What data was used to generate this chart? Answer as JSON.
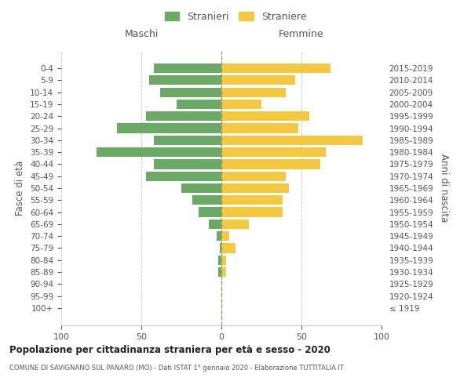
{
  "age_groups": [
    "100+",
    "95-99",
    "90-94",
    "85-89",
    "80-84",
    "75-79",
    "70-74",
    "65-69",
    "60-64",
    "55-59",
    "50-54",
    "45-49",
    "40-44",
    "35-39",
    "30-34",
    "25-29",
    "20-24",
    "15-19",
    "10-14",
    "5-9",
    "0-4"
  ],
  "birth_years": [
    "≤ 1919",
    "1920-1924",
    "1925-1929",
    "1930-1934",
    "1935-1939",
    "1940-1944",
    "1945-1949",
    "1950-1954",
    "1955-1959",
    "1960-1964",
    "1965-1969",
    "1970-1974",
    "1975-1979",
    "1980-1984",
    "1985-1989",
    "1990-1994",
    "1995-1999",
    "2000-2004",
    "2005-2009",
    "2010-2014",
    "2015-2019"
  ],
  "males": [
    0,
    0,
    0,
    2,
    2,
    1,
    3,
    8,
    14,
    18,
    25,
    47,
    42,
    78,
    42,
    65,
    47,
    28,
    38,
    45,
    42
  ],
  "females": [
    0,
    0,
    0,
    3,
    3,
    9,
    5,
    17,
    38,
    38,
    42,
    40,
    62,
    65,
    88,
    48,
    55,
    25,
    40,
    46,
    68
  ],
  "male_color": "#6aaa64",
  "female_color": "#f5c842",
  "bar_height": 0.8,
  "xlim": 100,
  "title_main": "Popolazione per cittadinanza straniera per età e sesso - 2020",
  "title_sub": "COMUNE DI SAVIGNANO SUL PANARO (MO) - Dati ISTAT 1° gennaio 2020 - Elaborazione TUTTITALIA.IT",
  "ylabel_left": "Fasce di età",
  "ylabel_right": "Anni di nascita",
  "label_maschi": "Maschi",
  "label_femmine": "Femmine",
  "legend_stranieri": "Stranieri",
  "legend_straniere": "Straniere",
  "bg_color": "#ffffff",
  "grid_color": "#cccccc",
  "text_color": "#555555",
  "vline_color": "#999966"
}
